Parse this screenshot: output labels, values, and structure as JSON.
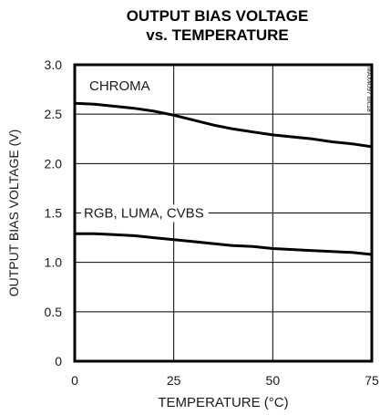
{
  "chart_data": {
    "type": "line",
    "title_line1": "OUTPUT BIAS VOLTAGE",
    "title_line2": "vs. TEMPERATURE",
    "xlabel": "TEMPERATURE (°C)",
    "ylabel": "OUTPUT BIAS VOLTAGE (V)",
    "xlim": [
      0,
      75
    ],
    "ylim": [
      0,
      3.0
    ],
    "x_ticks": [
      0,
      25,
      50,
      75
    ],
    "x_tick_labels": [
      "0",
      "25",
      "50",
      "75"
    ],
    "y_ticks": [
      0,
      0.5,
      1.0,
      1.5,
      2.0,
      2.5,
      3.0
    ],
    "y_tick_labels": [
      "0",
      "0.5",
      "1.0",
      "1.5",
      "2.0",
      "2.5",
      "3.0"
    ],
    "grid": true,
    "watermark": "MAX4097 toc18",
    "series": [
      {
        "name": "CHROMA",
        "color": "#000000",
        "x": [
          0,
          5,
          10,
          15,
          20,
          25,
          30,
          35,
          40,
          45,
          50,
          55,
          60,
          65,
          70,
          75
        ],
        "y": [
          2.61,
          2.6,
          2.58,
          2.56,
          2.53,
          2.49,
          2.44,
          2.39,
          2.35,
          2.32,
          2.29,
          2.27,
          2.25,
          2.22,
          2.2,
          2.17
        ]
      },
      {
        "name": "RGB, LUMA, CVBS",
        "color": "#000000",
        "x": [
          0,
          5,
          10,
          15,
          20,
          25,
          30,
          35,
          40,
          45,
          50,
          55,
          60,
          65,
          70,
          75
        ],
        "y": [
          1.29,
          1.29,
          1.28,
          1.27,
          1.25,
          1.23,
          1.21,
          1.19,
          1.17,
          1.16,
          1.14,
          1.13,
          1.12,
          1.11,
          1.1,
          1.08
        ]
      }
    ]
  }
}
